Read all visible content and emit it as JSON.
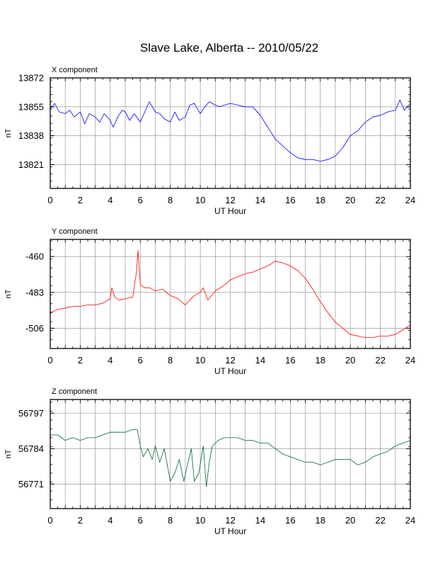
{
  "title": "Slave Lake, Alberta -- 2010/05/22",
  "chart_data": [
    {
      "type": "line",
      "title": "X component",
      "xlabel": "UT Hour",
      "ylabel": "nT",
      "xlim": [
        0,
        24
      ],
      "ylim": [
        13807,
        13872
      ],
      "yticks": [
        13872,
        13855,
        13838,
        13821
      ],
      "xticks": [
        0,
        2,
        4,
        6,
        8,
        10,
        12,
        14,
        16,
        18,
        20,
        22,
        24
      ],
      "grid": true,
      "color": "#0000ff",
      "series": [
        {
          "x": [
            0,
            0.3,
            0.6,
            1,
            1.3,
            1.6,
            2,
            2.3,
            2.6,
            3,
            3.3,
            3.6,
            4,
            4.2,
            4.5,
            4.8,
            5,
            5.3,
            5.6,
            6,
            6.3,
            6.6,
            7,
            7.3,
            7.6,
            8,
            8.3,
            8.6,
            9,
            9.3,
            9.6,
            10,
            10.3,
            10.6,
            11,
            11.3,
            11.6,
            12,
            12.5,
            13,
            13.5,
            14,
            14.5,
            15,
            15.5,
            16,
            16.5,
            17,
            17.5,
            18,
            18.5,
            19,
            19.5,
            20,
            20.5,
            21,
            21.5,
            22,
            22.5,
            23,
            23.3,
            23.6,
            24
          ],
          "y": [
            13854,
            13857,
            13852,
            13851,
            13853,
            13849,
            13852,
            13845,
            13851,
            13849,
            13846,
            13851,
            13847,
            13843,
            13849,
            13853,
            13852,
            13847,
            13851,
            13846,
            13852,
            13858,
            13852,
            13851,
            13848,
            13846,
            13852,
            13847,
            13849,
            13856,
            13857,
            13851,
            13855,
            13858,
            13856,
            13855,
            13856,
            13857,
            13856,
            13855,
            13855,
            13850,
            13843,
            13836,
            13832,
            13828,
            13825,
            13824,
            13824,
            13823,
            13824,
            13826,
            13831,
            13838,
            13841,
            13846,
            13849,
            13850,
            13852,
            13853,
            13859,
            13853,
            13857
          ]
        }
      ]
    },
    {
      "type": "line",
      "title": "Y component",
      "xlabel": "UT Hour",
      "ylabel": "nT",
      "xlim": [
        0,
        24
      ],
      "ylim": [
        -519,
        -449
      ],
      "yticks": [
        -460,
        -483,
        -506
      ],
      "xticks": [
        0,
        2,
        4,
        6,
        8,
        10,
        12,
        14,
        16,
        18,
        20,
        22,
        24
      ],
      "grid": true,
      "color": "#ff0000",
      "series": [
        {
          "x": [
            0,
            0.5,
            1,
            1.5,
            2,
            2.5,
            3,
            3.5,
            4,
            4.1,
            4.3,
            4.6,
            5,
            5.5,
            5.75,
            5.85,
            6,
            6.3,
            6.6,
            7,
            7.5,
            8,
            8.5,
            9,
            9.3,
            9.6,
            10,
            10.2,
            10.5,
            11,
            11.5,
            12,
            12.5,
            13,
            13.5,
            14,
            14.5,
            15,
            15.5,
            16,
            16.5,
            17,
            17.5,
            18,
            18.5,
            19,
            19.5,
            20,
            20.5,
            21,
            21.5,
            22,
            22.5,
            23,
            23.5,
            24
          ],
          "y": [
            -496,
            -494,
            -493,
            -492,
            -492,
            -491,
            -491,
            -490,
            -487,
            -480,
            -486,
            -488,
            -487,
            -486,
            -470,
            -456,
            -478,
            -480,
            -480,
            -482,
            -481,
            -485,
            -487,
            -491,
            -488,
            -485,
            -483,
            -480,
            -488,
            -482,
            -479,
            -475,
            -473,
            -471,
            -470,
            -468,
            -466,
            -463,
            -464,
            -466,
            -469,
            -474,
            -481,
            -489,
            -496,
            -502,
            -506,
            -510,
            -511,
            -512,
            -512,
            -511,
            -511,
            -510,
            -507,
            -504
          ]
        }
      ]
    },
    {
      "type": "line",
      "title": "Z component",
      "xlabel": "UT Hour",
      "ylabel": "nT",
      "xlim": [
        0,
        24
      ],
      "ylim": [
        56762,
        56802
      ],
      "yticks": [
        56797,
        56784,
        56771
      ],
      "xticks": [
        0,
        2,
        4,
        6,
        8,
        10,
        12,
        14,
        16,
        18,
        20,
        22,
        24
      ],
      "grid": true,
      "color": "#006633",
      "series": [
        {
          "x": [
            0,
            0.5,
            1,
            1.5,
            2,
            2.5,
            3,
            3.5,
            4,
            4.5,
            5,
            5.5,
            5.8,
            6,
            6.2,
            6.5,
            6.8,
            7,
            7.3,
            7.6,
            8,
            8.3,
            8.6,
            8.9,
            9.1,
            9.4,
            9.6,
            9.9,
            10.2,
            10.4,
            10.6,
            10.8,
            11.2,
            11.6,
            12,
            12.5,
            13,
            13.5,
            14,
            14.5,
            15,
            15.5,
            16,
            16.5,
            17,
            17.5,
            18,
            18.5,
            19,
            19.5,
            20,
            20.5,
            21,
            21.5,
            22,
            22.5,
            23,
            23.5,
            24
          ],
          "y": [
            56789,
            56789,
            56787,
            56788,
            56787,
            56788,
            56788,
            56789,
            56790,
            56790,
            56790,
            56791,
            56791,
            56785,
            56781,
            56784,
            56780,
            56785,
            56779,
            56784,
            56772,
            56775,
            56780,
            56772,
            56777,
            56784,
            56772,
            56775,
            56785,
            56770,
            56779,
            56785,
            56787,
            56788,
            56788,
            56788,
            56787,
            56787,
            56786,
            56786,
            56784,
            56782,
            56781,
            56780,
            56779,
            56779,
            56778,
            56779,
            56780,
            56780,
            56780,
            56778,
            56779,
            56781,
            56782,
            56783,
            56785,
            56786,
            56787
          ]
        }
      ]
    }
  ]
}
